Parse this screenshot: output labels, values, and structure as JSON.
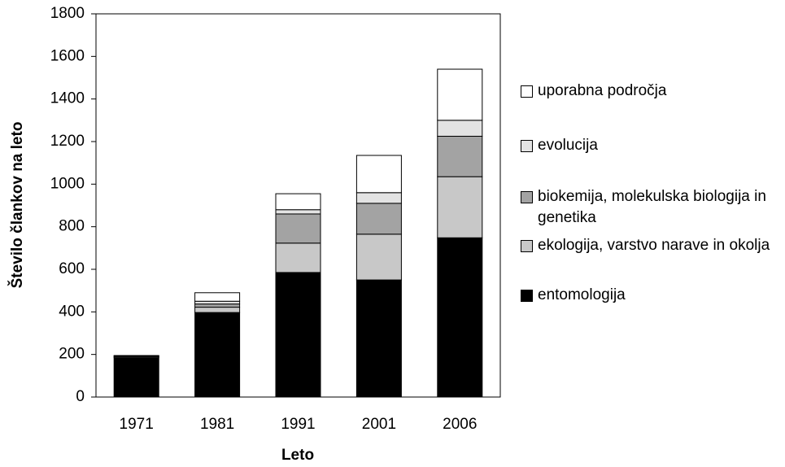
{
  "chart_data": {
    "type": "stacked_bar",
    "x_label": "Leto",
    "y_label": "Število člankov na leto",
    "categories": [
      "1971",
      "1981",
      "1991",
      "2001",
      "2006"
    ],
    "series": [
      {
        "name": "entomologija",
        "color": "#000000",
        "values": [
          185,
          397,
          585,
          550,
          748
        ]
      },
      {
        "name": "ekologija, varstvo narave in okolja",
        "color": "#c8c8c8",
        "values": [
          5,
          25,
          138,
          215,
          287
        ]
      },
      {
        "name": "biokemija, molekulska biologija in genetika",
        "color": "#a3a3a3",
        "values": [
          3,
          15,
          137,
          145,
          190
        ]
      },
      {
        "name": "evolucija",
        "color": "#e3e3e3",
        "values": [
          2,
          13,
          20,
          50,
          75
        ]
      },
      {
        "name": "uporabna področja",
        "color": "#ffffff",
        "values": [
          0,
          40,
          75,
          175,
          240
        ]
      }
    ],
    "ylim": [
      0,
      1800
    ],
    "yticks": [
      0,
      200,
      400,
      600,
      800,
      1000,
      1200,
      1400,
      1600,
      1800
    ],
    "legend": "right"
  }
}
